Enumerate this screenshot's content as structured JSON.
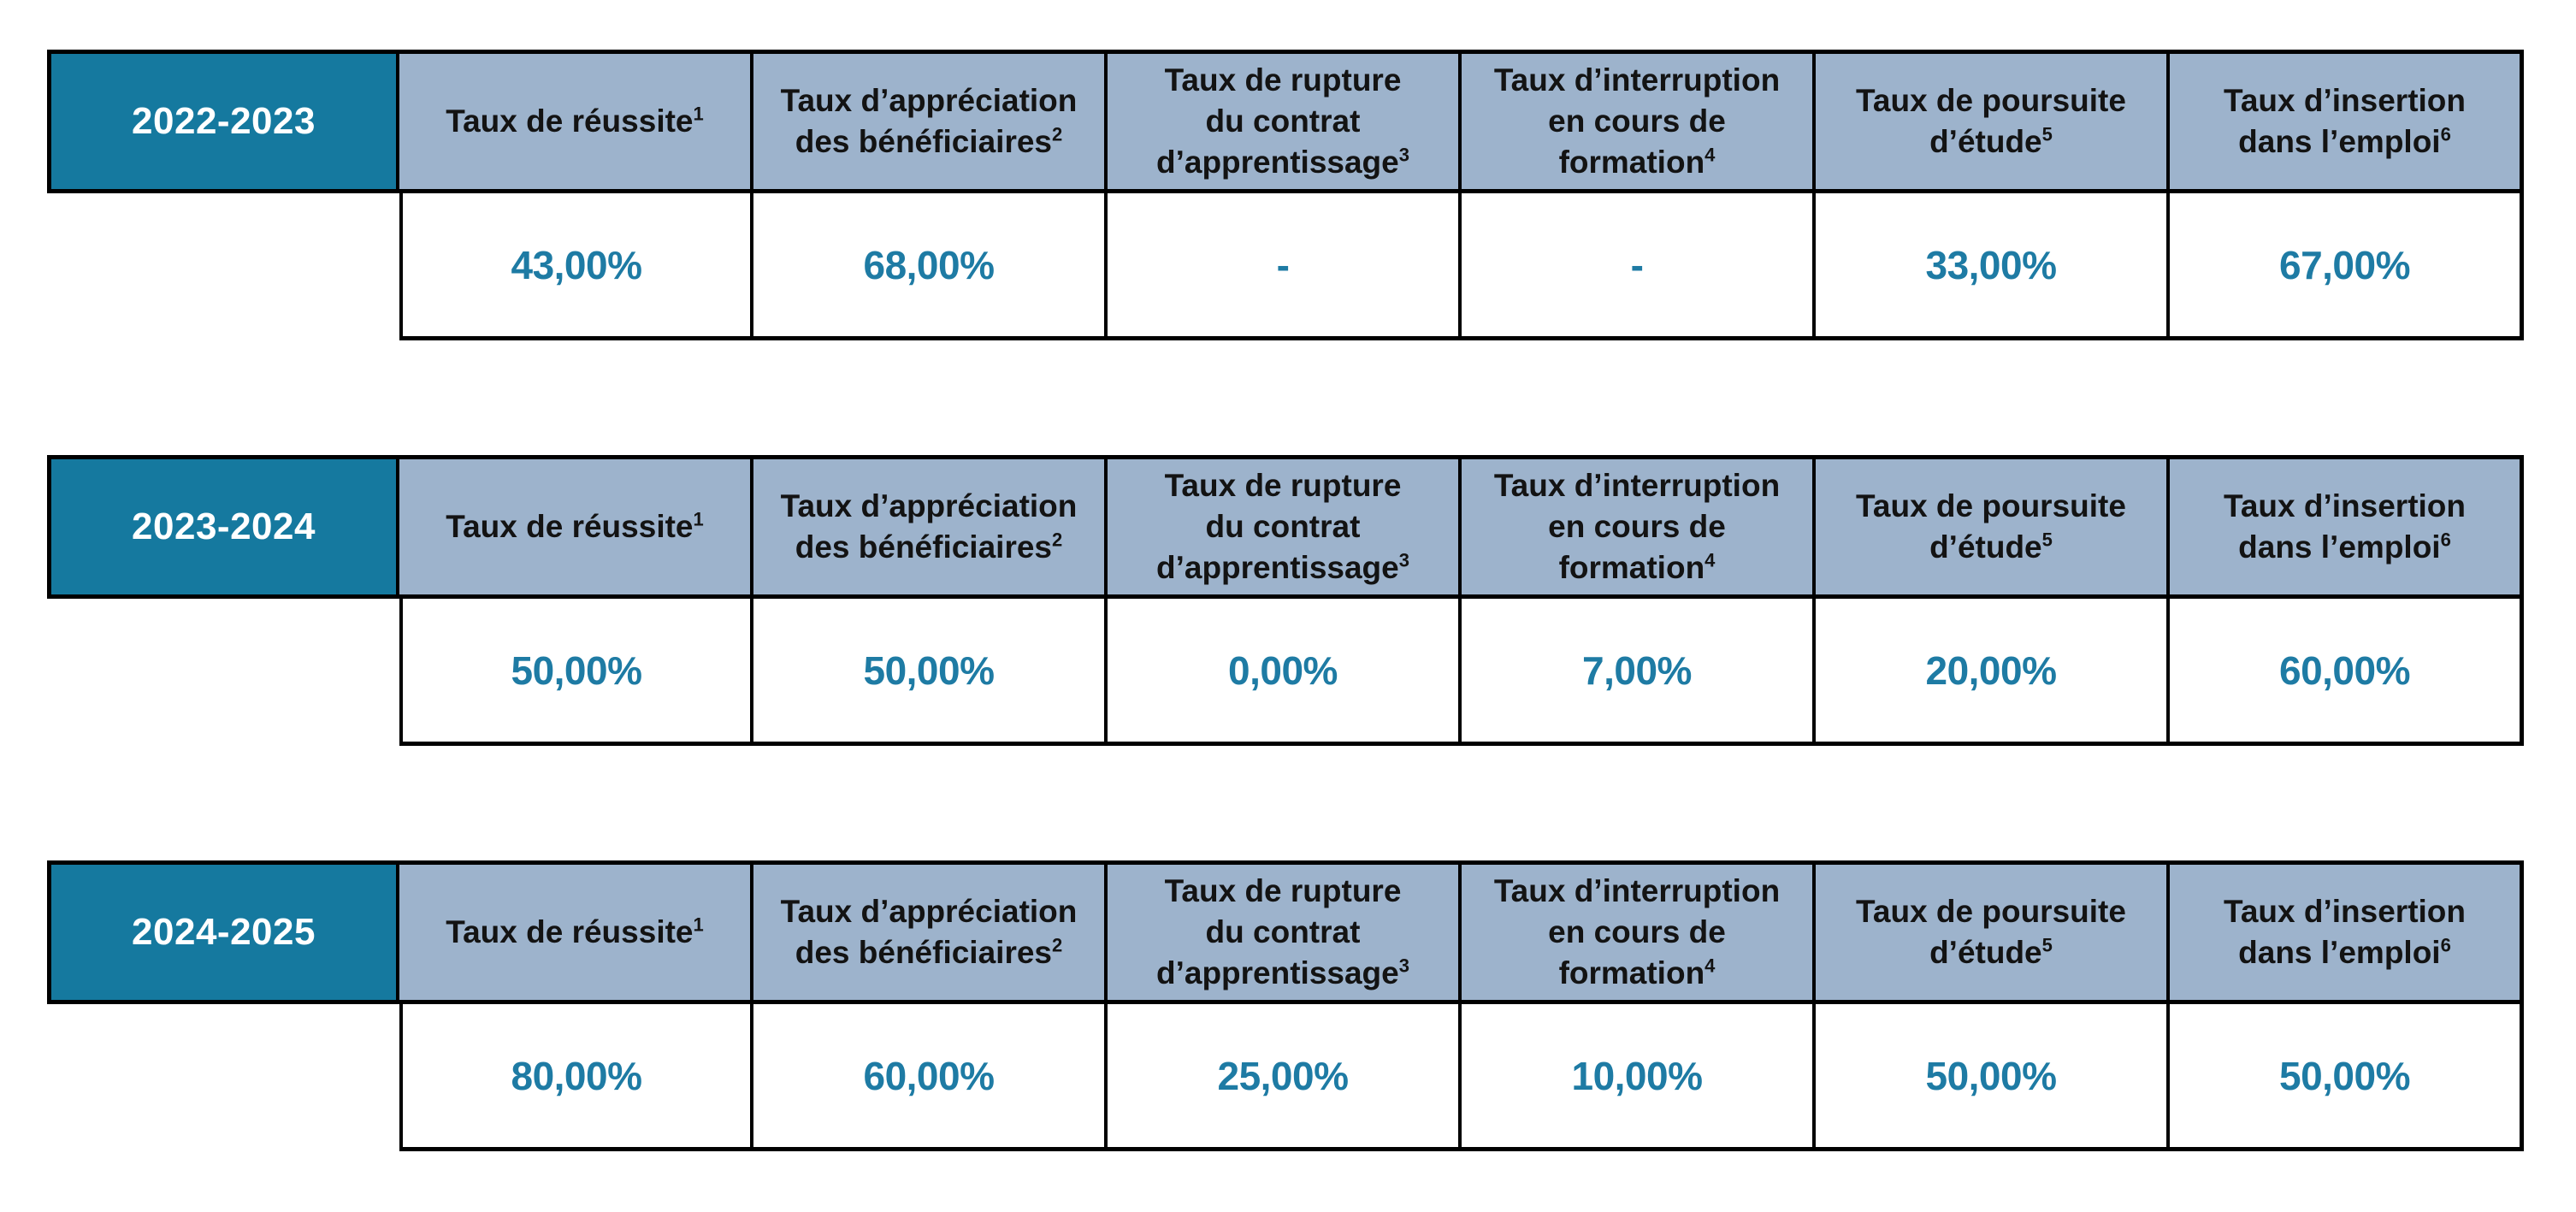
{
  "colors": {
    "year_bg": "#15799F",
    "header_bg": "#9DB3CC",
    "value_text": "#1E7BA4",
    "header_text": "#131313",
    "border": "#000000"
  },
  "columns": [
    {
      "text": "Taux de réussite",
      "sup": "1"
    },
    {
      "text": "Taux d’appréciation\ndes bénéficiaires",
      "sup": "2"
    },
    {
      "text": "Taux de rupture\ndu contrat\nd’apprentissage",
      "sup": "3"
    },
    {
      "text": "Taux d’interruption\nen cours de\nformation",
      "sup": "4"
    },
    {
      "text": "Taux de poursuite\nd’étude",
      "sup": "5"
    },
    {
      "text": "Taux d’insertion\ndans l’emploi",
      "sup": "6"
    }
  ],
  "tables": [
    {
      "year": "2022-2023",
      "values": [
        "43,00%",
        "68,00%",
        "-",
        "-",
        "33,00%",
        "67,00%"
      ]
    },
    {
      "year": "2023-2024",
      "values": [
        "50,00%",
        "50,00%",
        "0,00%",
        "7,00%",
        "20,00%",
        "60,00%"
      ]
    },
    {
      "year": "2024-2025",
      "values": [
        "80,00%",
        "60,00%",
        "25,00%",
        "10,00%",
        "50,00%",
        "50,00%"
      ]
    }
  ]
}
